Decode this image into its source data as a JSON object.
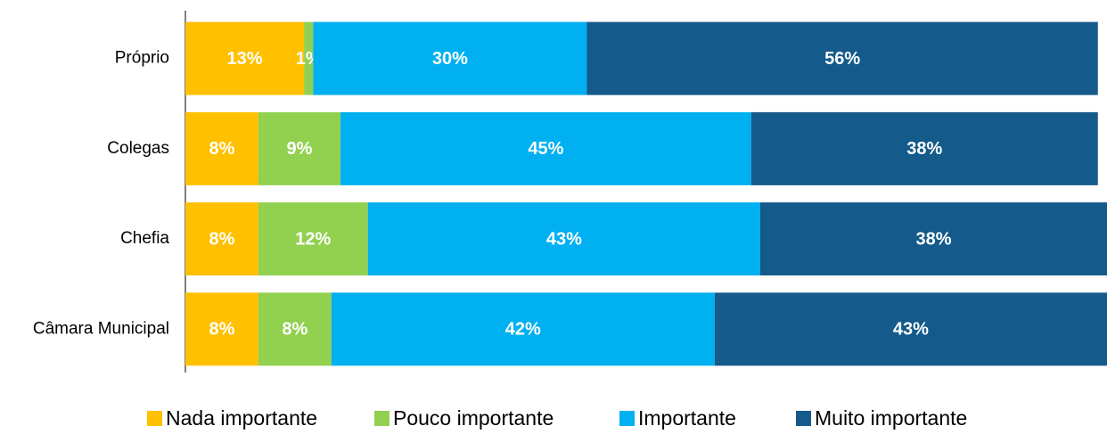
{
  "chart_data": {
    "type": "stacked-bar-horizontal",
    "categories": [
      "Próprio",
      "Colegas",
      "Chefia",
      "Câmara Municipal"
    ],
    "xlim": [
      0,
      101
    ],
    "series": [
      {
        "name": "Nada importante",
        "color": "#ffc000",
        "values": [
          13,
          8,
          8,
          8
        ],
        "value_labels": [
          "13%",
          "8%",
          "8%",
          "8%"
        ]
      },
      {
        "name": "Pouco importante",
        "color": "#92d050",
        "values": [
          1,
          9,
          12,
          8
        ],
        "value_labels": [
          "1%",
          "9%",
          "12%",
          "8%"
        ]
      },
      {
        "name": "Importante",
        "color": "#00b0f0",
        "values": [
          30,
          45,
          43,
          42
        ],
        "value_labels": [
          "30%",
          "45%",
          "43%",
          "42%"
        ]
      },
      {
        "name": "Muito importante",
        "color": "#145a8a",
        "values": [
          56,
          38,
          38,
          43
        ],
        "value_labels": [
          "56%",
          "38%",
          "38%",
          "43%"
        ]
      }
    ]
  }
}
